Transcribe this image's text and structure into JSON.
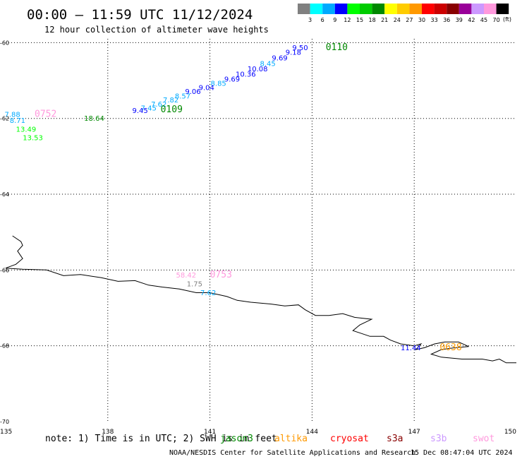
{
  "header": {
    "title": "00:00 – 11:59 UTC 11/12/2024",
    "subtitle": "12 hour collection of altimeter wave heights"
  },
  "colorbar": {
    "colors": [
      "#808080",
      "#00ffff",
      "#00aaff",
      "#0000ff",
      "#00ff00",
      "#00cc00",
      "#008800",
      "#ffff00",
      "#ffcc00",
      "#ff9900",
      "#ff0000",
      "#cc0000",
      "#880000",
      "#990099",
      "#cc99ff",
      "#ff99dd",
      "#000000"
    ],
    "labels": [
      "3",
      "6",
      "9",
      "12",
      "15",
      "18",
      "21",
      "24",
      "27",
      "30",
      "33",
      "36",
      "39",
      "42",
      "45",
      "70"
    ],
    "unit": "(ft)"
  },
  "axes": {
    "lon_ticks": [
      "135",
      "138",
      "141",
      "144",
      "147",
      "150"
    ],
    "lat_ticks": [
      "-60",
      "-62",
      "-64",
      "-66",
      "-68",
      "-70"
    ],
    "lon_range": [
      135,
      150
    ],
    "lat_range": [
      -70,
      -59.9
    ]
  },
  "legend": {
    "note": "note: 1) Time is in UTC; 2) SWH is in feet",
    "satellites": [
      {
        "name": "jason3",
        "color": "#008800"
      },
      {
        "name": "altika",
        "color": "#ff9900"
      },
      {
        "name": "cryosat",
        "color": "#ff0000"
      },
      {
        "name": "s3a",
        "color": "#880000"
      },
      {
        "name": "s3b",
        "color": "#cc99ff"
      },
      {
        "name": "swot",
        "color": "#ff99dd"
      }
    ]
  },
  "footer": {
    "credit": "NOAA/NESDIS Center for Satellite Applications and Research",
    "timestamp": "15 Dec 08:47:04 UTC 2024"
  },
  "map_data": {
    "coastline": [
      [
        135.2,
        -65.1
      ],
      [
        135.45,
        -65.25
      ],
      [
        135.5,
        -65.35
      ],
      [
        135.35,
        -65.5
      ],
      [
        135.5,
        -65.7
      ],
      [
        135.3,
        -65.85
      ],
      [
        135.0,
        -65.95
      ],
      [
        135.5,
        -65.98
      ],
      [
        136.2,
        -66.0
      ],
      [
        136.7,
        -66.15
      ],
      [
        137.2,
        -66.12
      ],
      [
        137.8,
        -66.2
      ],
      [
        138.3,
        -66.3
      ],
      [
        138.8,
        -66.28
      ],
      [
        139.2,
        -66.4
      ],
      [
        139.6,
        -66.45
      ],
      [
        140.1,
        -66.5
      ],
      [
        140.6,
        -66.6
      ],
      [
        141.0,
        -66.6
      ],
      [
        141.5,
        -66.7
      ],
      [
        141.8,
        -66.8
      ],
      [
        142.2,
        -66.85
      ],
      [
        142.8,
        -66.9
      ],
      [
        143.2,
        -66.95
      ],
      [
        143.6,
        -66.92
      ],
      [
        143.8,
        -67.05
      ],
      [
        144.1,
        -67.2
      ],
      [
        144.5,
        -67.2
      ],
      [
        144.9,
        -67.15
      ],
      [
        145.25,
        -67.25
      ],
      [
        145.75,
        -67.3
      ],
      [
        145.4,
        -67.45
      ],
      [
        145.2,
        -67.6
      ],
      [
        145.7,
        -67.75
      ],
      [
        146.1,
        -67.75
      ],
      [
        146.3,
        -67.85
      ],
      [
        146.6,
        -67.95
      ],
      [
        147.0,
        -68.0
      ],
      [
        147.2,
        -67.95
      ],
      [
        147.05,
        -68.1
      ],
      [
        147.3,
        -68.05
      ],
      [
        147.6,
        -67.95
      ],
      [
        147.9,
        -67.9
      ],
      [
        148.3,
        -67.9
      ],
      [
        148.6,
        -68.02
      ],
      [
        148.2,
        -68.05
      ],
      [
        147.8,
        -68.1
      ],
      [
        147.5,
        -68.22
      ],
      [
        147.8,
        -68.3
      ],
      [
        148.4,
        -68.35
      ],
      [
        149.0,
        -68.35
      ],
      [
        149.3,
        -68.4
      ],
      [
        149.5,
        -68.35
      ],
      [
        149.7,
        -68.45
      ],
      [
        150.0,
        -68.45
      ]
    ],
    "points": [
      {
        "lon": 143.65,
        "lat": -60.2,
        "text": "9.50",
        "color": "#0000ff"
      },
      {
        "lon": 143.45,
        "lat": -60.32,
        "text": "9.18",
        "color": "#0000ff"
      },
      {
        "lon": 143.05,
        "lat": -60.47,
        "text": "9.69",
        "color": "#0000ff"
      },
      {
        "lon": 142.7,
        "lat": -60.62,
        "text": "8.45",
        "color": "#00aaff"
      },
      {
        "lon": 142.4,
        "lat": -60.76,
        "text": "10.08",
        "color": "#0000ff"
      },
      {
        "lon": 142.05,
        "lat": -60.9,
        "text": "10.36",
        "color": "#0000ff"
      },
      {
        "lon": 141.65,
        "lat": -61.03,
        "text": "9.69",
        "color": "#0000ff"
      },
      {
        "lon": 141.25,
        "lat": -61.14,
        "text": "8.85",
        "color": "#00aaff"
      },
      {
        "lon": 140.9,
        "lat": -61.25,
        "text": "9.04",
        "color": "#0000ff"
      },
      {
        "lon": 140.5,
        "lat": -61.35,
        "text": "9.06",
        "color": "#0000ff"
      },
      {
        "lon": 140.2,
        "lat": -61.47,
        "text": "8.57",
        "color": "#00aaff"
      },
      {
        "lon": 139.85,
        "lat": -61.58,
        "text": "7.82",
        "color": "#00aaff"
      },
      {
        "lon": 139.5,
        "lat": -61.69,
        "text": "7.62",
        "color": "#00aaff"
      },
      {
        "lon": 139.2,
        "lat": -61.79,
        "text": "7.45",
        "color": "#00aaff"
      },
      {
        "lon": 138.95,
        "lat": -61.86,
        "text": "9.45",
        "color": "#0000ff"
      },
      {
        "lon": 135.2,
        "lat": -61.96,
        "text": "7.88",
        "color": "#00aaff"
      },
      {
        "lon": 135.35,
        "lat": -62.12,
        "text": "8.71",
        "color": "#00aaff"
      },
      {
        "lon": 135.6,
        "lat": -62.35,
        "text": "13.49",
        "color": "#00ff00"
      },
      {
        "lon": 135.8,
        "lat": -62.57,
        "text": "13.53",
        "color": "#00ff00"
      },
      {
        "lon": 137.6,
        "lat": -62.06,
        "text": "18.64",
        "color": "#008800"
      },
      {
        "lon": 140.3,
        "lat": -66.2,
        "text": "58.42",
        "color": "#ff99dd"
      },
      {
        "lon": 140.55,
        "lat": -66.43,
        "text": "1.75",
        "color": "#808080"
      },
      {
        "lon": 140.95,
        "lat": -66.66,
        "text": "7.62",
        "color": "#00aaff"
      },
      {
        "lon": 146.9,
        "lat": -68.12,
        "text": "11.44",
        "color": "#0000ff"
      }
    ],
    "time_labels": [
      {
        "lon": 144.4,
        "lat": -60.2,
        "text": "0110",
        "color": "#008800"
      },
      {
        "lon": 139.55,
        "lat": -61.84,
        "text": "0109",
        "color": "#008800"
      },
      {
        "lon": 135.85,
        "lat": -61.96,
        "text": "0752",
        "color": "#ff99dd"
      },
      {
        "lon": 141.0,
        "lat": -66.2,
        "text": "0753",
        "color": "#ff99dd"
      },
      {
        "lon": 147.75,
        "lat": -68.12,
        "text": "0638",
        "color": "#ff9900"
      }
    ]
  }
}
